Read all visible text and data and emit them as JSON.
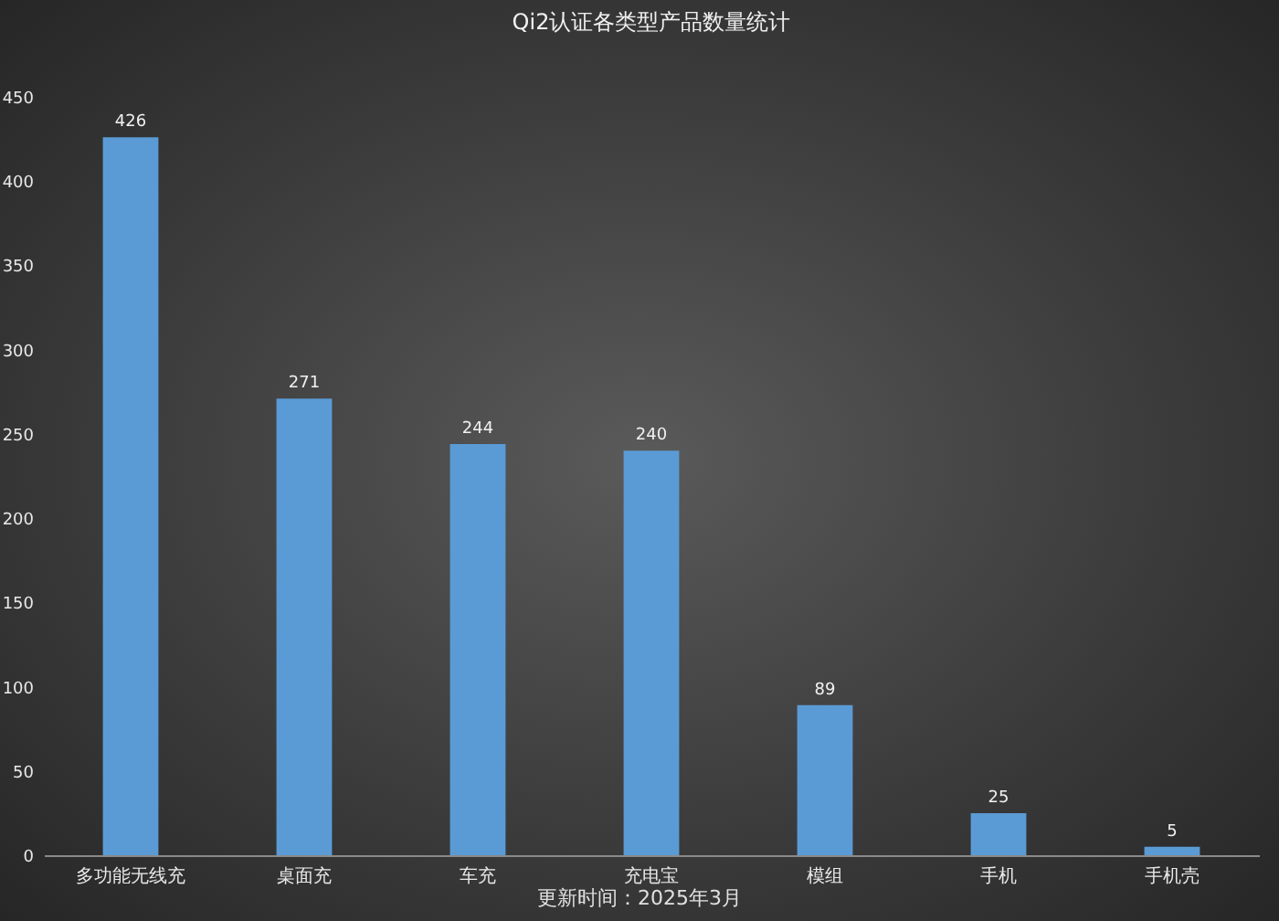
{
  "chart_data": {
    "type": "bar",
    "title": "Qi2认证各类型产品数量统计",
    "categories": [
      "多功能无线充",
      "桌面充",
      "车充",
      "充电宝",
      "模组",
      "手机",
      "手机壳"
    ],
    "values": [
      426,
      271,
      244,
      240,
      89,
      25,
      5
    ],
    "color": "#5b9bd5",
    "ylim": [
      0,
      450
    ],
    "yticks": [
      0,
      50,
      100,
      150,
      200,
      250,
      300,
      350,
      400,
      450
    ],
    "grid": false,
    "data_labels": true,
    "annotations": [
      "更新时间：2025年3月"
    ]
  }
}
